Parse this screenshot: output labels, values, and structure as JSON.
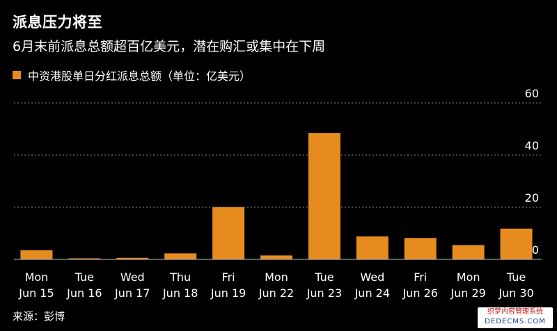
{
  "chart_data": {
    "type": "bar",
    "title": "派息压力将至",
    "subtitle": "6月末前派息总额超百亿美元，潜在购汇或集中在下周",
    "legend_label": "中资港股单日分红派息总额（单位：亿美元）",
    "legend_placement": "top-left",
    "source": "来源：彭博",
    "categories": [
      [
        "Mon",
        "Jun 15"
      ],
      [
        "Tue",
        "Jun 16"
      ],
      [
        "Wed",
        "Jun 17"
      ],
      [
        "Thu",
        "Jun 18"
      ],
      [
        "Fri",
        "Jun 19"
      ],
      [
        "Mon",
        "Jun 22"
      ],
      [
        "Tue",
        "Jun 23"
      ],
      [
        "Wed",
        "Jun 24"
      ],
      [
        "Fri",
        "Jun 26"
      ],
      [
        "Mon",
        "Jun 29"
      ],
      [
        "Tue",
        "Jun 30"
      ]
    ],
    "values": [
      3.5,
      0.4,
      0.6,
      2.3,
      20,
      1.5,
      48.5,
      8.8,
      8.2,
      5.5,
      11.8
    ],
    "ylim": [
      0,
      60
    ],
    "yticks": [
      0,
      20,
      40,
      60
    ],
    "grid": true,
    "bar_color": "#e68c1f",
    "grid_color": "#8a8a8a"
  },
  "watermark": {
    "line1": "织梦内容管理系统",
    "line2": "DEDECMS.COM"
  }
}
